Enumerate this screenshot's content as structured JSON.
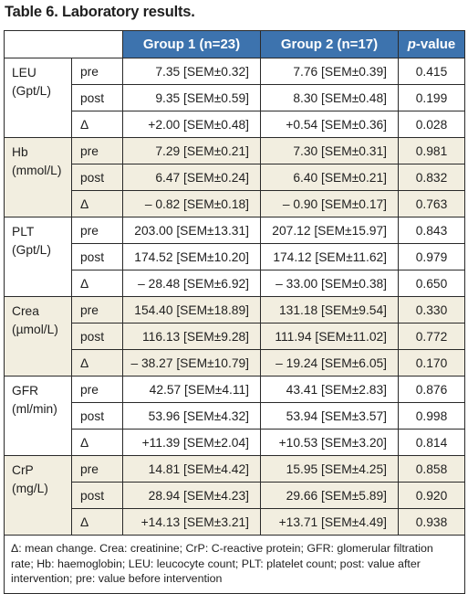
{
  "title": "Table 6. Laboratory results.",
  "headers": {
    "group1": "Group 1 (n=23)",
    "group2": "Group 2 (n=17)",
    "pvalue_italic": "p",
    "pvalue_rest": "-value"
  },
  "groups": [
    {
      "name": "LEU",
      "unit": "(Gpt/L)",
      "rows": [
        {
          "stage": "pre",
          "g1": "7.35 [SEM±0.32]",
          "g2": "7.76 [SEM±0.39]",
          "p": "0.415"
        },
        {
          "stage": "post",
          "g1": "9.35 [SEM±0.59]",
          "g2": "8.30 [SEM±0.48]",
          "p": "0.199"
        },
        {
          "stage": "Δ",
          "g1": "+2.00 [SEM±0.48]",
          "g2": "+0.54 [SEM±0.36]",
          "p": "0.028"
        }
      ]
    },
    {
      "name": "Hb",
      "unit": "(mmol/L)",
      "rows": [
        {
          "stage": "pre",
          "g1": "7.29 [SEM±0.21]",
          "g2": "7.30 [SEM±0.31]",
          "p": "0.981"
        },
        {
          "stage": "post",
          "g1": "6.47 [SEM±0.24]",
          "g2": "6.40 [SEM±0.21]",
          "p": "0.832"
        },
        {
          "stage": "Δ",
          "g1": "– 0.82 [SEM±0.18]",
          "g2": "– 0.90 [SEM±0.17]",
          "p": "0.763"
        }
      ]
    },
    {
      "name": "PLT",
      "unit": "(Gpt/L)",
      "rows": [
        {
          "stage": "pre",
          "g1": "203.00 [SEM±13.31]",
          "g2": "207.12 [SEM±15.97]",
          "p": "0.843"
        },
        {
          "stage": "post",
          "g1": "174.52 [SEM±10.20]",
          "g2": "174.12 [SEM±11.62]",
          "p": "0.979"
        },
        {
          "stage": "Δ",
          "g1": "– 28.48 [SEM±6.92]",
          "g2": "– 33.00 [SEM±0.38]",
          "p": "0.650"
        }
      ]
    },
    {
      "name": "Crea",
      "unit": "(µmol/L)",
      "rows": [
        {
          "stage": "pre",
          "g1": "154.40 [SEM±18.89]",
          "g2": "131.18 [SEM±9.54]",
          "p": "0.330"
        },
        {
          "stage": "post",
          "g1": "116.13 [SEM±9.28]",
          "g2": "111.94 [SEM±11.02]",
          "p": "0.772"
        },
        {
          "stage": "Δ",
          "g1": "– 38.27 [SEM±10.79]",
          "g2": "– 19.24 [SEM±6.05]",
          "p": "0.170"
        }
      ]
    },
    {
      "name": "GFR",
      "unit": "(ml/min)",
      "rows": [
        {
          "stage": "pre",
          "g1": "42.57 [SEM±4.11]",
          "g2": "43.41 [SEM±2.83]",
          "p": "0.876"
        },
        {
          "stage": "post",
          "g1": "53.96 [SEM±4.32]",
          "g2": "53.94 [SEM±3.57]",
          "p": "0.998"
        },
        {
          "stage": "Δ",
          "g1": "+11.39 [SEM±2.04]",
          "g2": "+10.53 [SEM±3.20]",
          "p": "0.814"
        }
      ]
    },
    {
      "name": "CrP",
      "unit": "(mg/L)",
      "rows": [
        {
          "stage": "pre",
          "g1": "14.81 [SEM±4.42]",
          "g2": "15.95 [SEM±4.25]",
          "p": "0.858"
        },
        {
          "stage": "post",
          "g1": "28.94 [SEM±4.23]",
          "g2": "29.66 [SEM±5.89]",
          "p": "0.920"
        },
        {
          "stage": "Δ",
          "g1": "+14.13 [SEM±3.21]",
          "g2": "+13.71 [SEM±4.49]",
          "p": "0.938"
        }
      ]
    }
  ],
  "footnote": "Δ: mean change. Crea: creatinine; CrP: C-reactive protein; GFR: glomerular filtration rate; Hb: haemoglobin; LEU: leucocyte count; PLT: platelet count; post: value after intervention; pre: value before intervention",
  "colors": {
    "header_bg": "#3d73ae",
    "alt_row_bg": "#f2eee0"
  }
}
